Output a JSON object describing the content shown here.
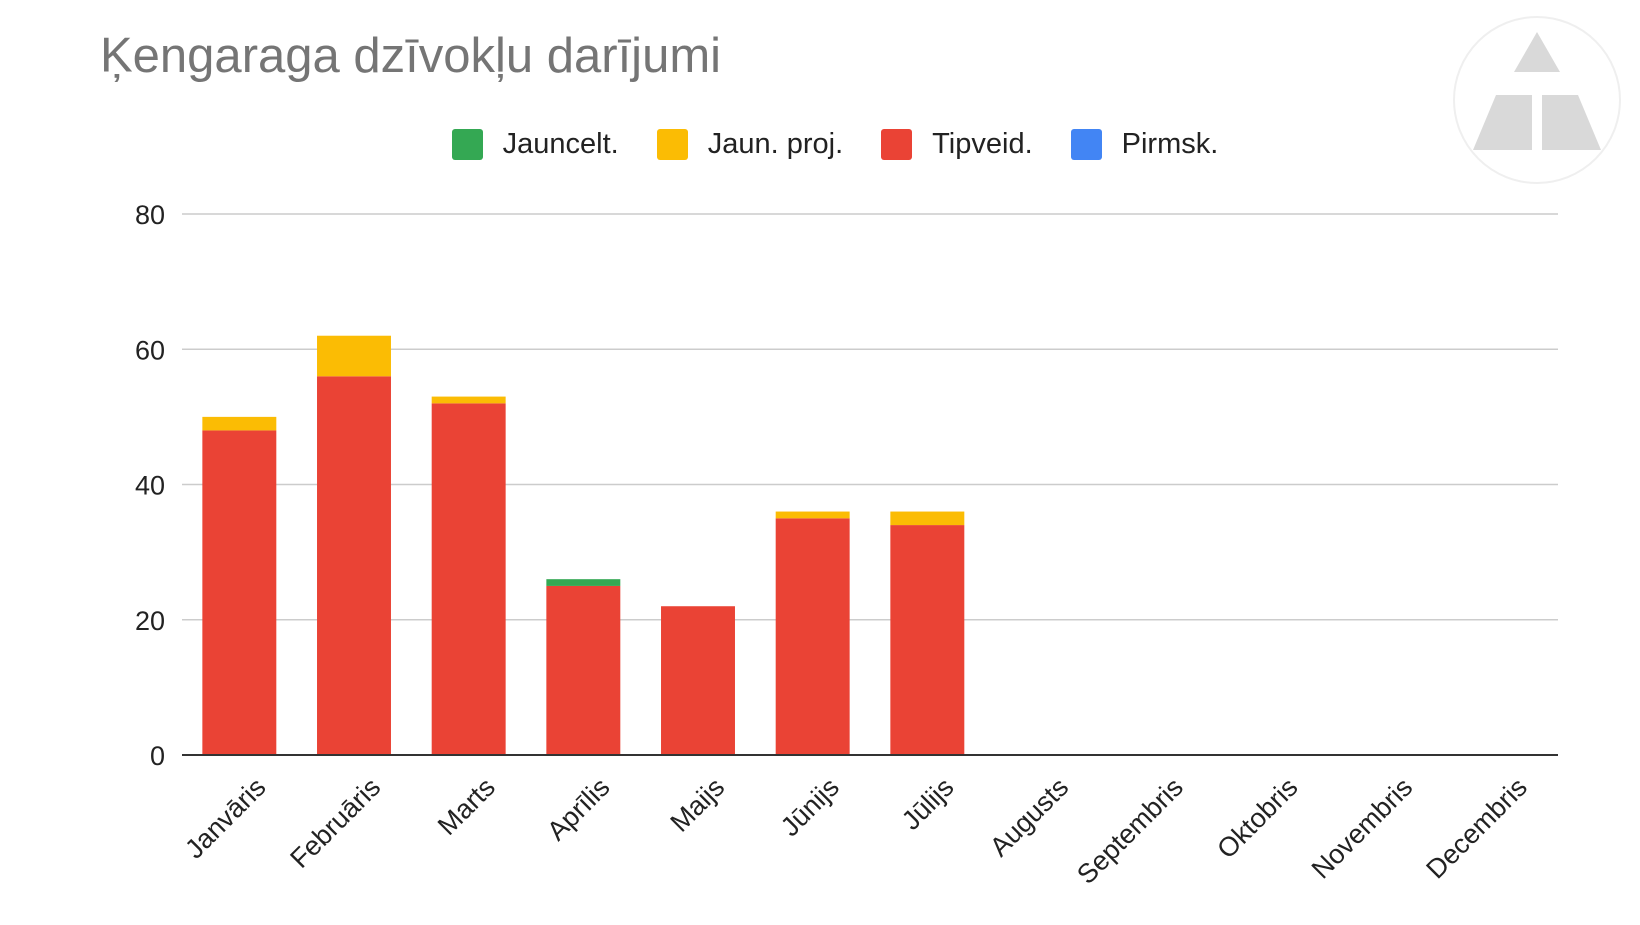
{
  "chart_data": {
    "type": "bar",
    "stacked": true,
    "title": "Ķengaraga dzīvokļu darījumi",
    "xlabel": "",
    "ylabel": "",
    "ylim": [
      0,
      80
    ],
    "yticks": [
      0,
      20,
      40,
      60,
      80
    ],
    "grid": true,
    "legend_position": "top",
    "categories": [
      "Janvāris",
      "Februāris",
      "Marts",
      "Aprīlis",
      "Maijs",
      "Jūnijs",
      "Jūlijs",
      "Augusts",
      "Septembris",
      "Oktobris",
      "Novembris",
      "Decembris"
    ],
    "series": [
      {
        "name": "Jauncelt.",
        "color": "#34a853",
        "values": [
          0,
          0,
          0,
          1,
          0,
          0,
          0,
          0,
          0,
          0,
          0,
          0
        ]
      },
      {
        "name": "Jaun. proj.",
        "color": "#fbbc04",
        "values": [
          2,
          6,
          1,
          0,
          0,
          1,
          2,
          0,
          0,
          0,
          0,
          0
        ]
      },
      {
        "name": "Tipveid.",
        "color": "#ea4335",
        "values": [
          48,
          56,
          52,
          25,
          22,
          35,
          34,
          0,
          0,
          0,
          0,
          0
        ]
      },
      {
        "name": "Pirmsk.",
        "color": "#4285f4",
        "values": [
          0,
          0,
          0,
          0,
          0,
          0,
          0,
          0,
          0,
          0,
          0,
          0
        ]
      }
    ],
    "stack_order": [
      "Tipveid.",
      "Jaun. proj.",
      "Jauncelt.",
      "Pirmsk."
    ]
  },
  "logo": {
    "name": "triangle-logo-icon",
    "color": "#d9d9d9"
  }
}
